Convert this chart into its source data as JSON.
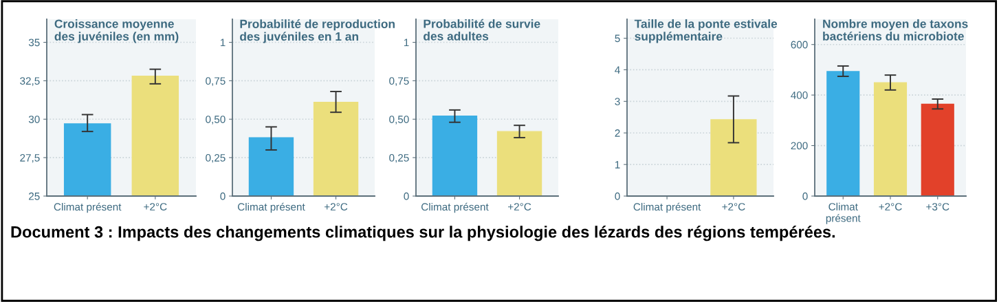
{
  "chart_data": [
    {
      "type": "bar",
      "title": "Croissance moyenne\ndes juvéniles (en mm)",
      "categories": [
        "Climat présent",
        "+2°C"
      ],
      "values": [
        29.7,
        32.8
      ],
      "colors": [
        "#3aaee4",
        "#ebdf7c"
      ],
      "errors": [
        [
          29.2,
          30.3
        ],
        [
          32.3,
          33.25
        ]
      ],
      "ylim": [
        25,
        36.5
      ],
      "yticks": [
        25,
        {
          "value": 27.5,
          "label": "27,5"
        },
        30,
        {
          "value": 32.5,
          "label": "32,5"
        },
        35
      ],
      "grid": "y",
      "annotations": [
        "Document 3 : Impacts des changements climatiques sur la physiologie des lézards des régions tempérées."
      ]
    },
    {
      "type": "bar",
      "title": "Probabilité de reproduction\ndes juvéniles en 1 an",
      "categories": [
        "Climat présent",
        "+2°C"
      ],
      "values": [
        0.38,
        0.61
      ],
      "colors": [
        "#3aaee4",
        "#ebdf7c"
      ],
      "errors": [
        [
          0.3,
          0.45
        ],
        [
          0.545,
          0.68
        ]
      ],
      "ylim": [
        0,
        1.15
      ],
      "yticks": [
        0,
        {
          "value": 0.25,
          "label": "0,25"
        },
        {
          "value": 0.5,
          "label": "0,50"
        },
        {
          "value": 0.75,
          "label": "0,75"
        },
        1
      ],
      "grid": "y"
    },
    {
      "type": "bar",
      "title": "Probabilité de survie\ndes adultes",
      "categories": [
        "Climat présent",
        "+2°C"
      ],
      "values": [
        0.52,
        0.42
      ],
      "colors": [
        "#3aaee4",
        "#ebdf7c"
      ],
      "errors": [
        [
          0.48,
          0.56
        ],
        [
          0.38,
          0.46
        ]
      ],
      "ylim": [
        0,
        1.15
      ],
      "yticks": [
        0,
        {
          "value": 0.25,
          "label": "0,25"
        },
        {
          "value": 0.5,
          "label": "0,50"
        },
        {
          "value": 0.75,
          "label": "0,75"
        },
        1
      ],
      "grid": "y"
    },
    {
      "type": "bar",
      "title": "Taille de la ponte estivale\nsupplémentaire",
      "categories": [
        "Climat présent",
        "+2°C"
      ],
      "values": [
        null,
        2.42
      ],
      "colors": [
        "#3aaee4",
        "#ebdf7c"
      ],
      "errors": [
        null,
        [
          1.69,
          3.17
        ]
      ],
      "ylim": [
        0,
        5.6
      ],
      "yticks": [
        0,
        1,
        2,
        3,
        4,
        5
      ],
      "grid": "y"
    },
    {
      "type": "bar",
      "title": "Nombre moyen de taxons\nbactériens du microbiote",
      "categories": [
        "Climat\nprésent",
        "+2°C",
        "+3°C"
      ],
      "values": [
        493,
        449,
        364
      ],
      "colors": [
        "#3aaee4",
        "#ebdf7c",
        "#e2412a"
      ],
      "errors": [
        [
          474,
          515
        ],
        [
          420,
          479
        ],
        [
          345,
          384
        ]
      ],
      "ylim": [
        0,
        700
      ],
      "yticks": [
        0,
        200,
        400,
        600
      ],
      "grid": "y"
    }
  ]
}
